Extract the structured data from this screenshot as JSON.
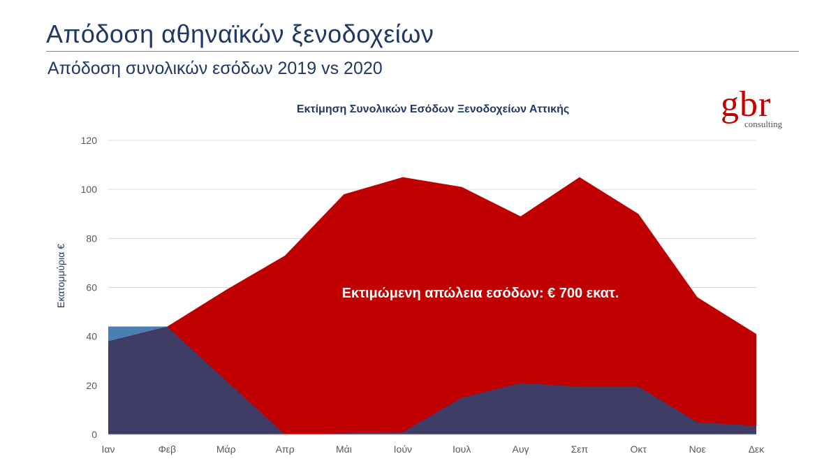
{
  "slide": {
    "title": "Απόδοση αθηναϊκών ξενοδοχείων",
    "subtitle": "Απόδοση συνολικών εσόδων 2019 vs 2020"
  },
  "logo": {
    "main": "gbr",
    "sub": "consulting"
  },
  "chart_data": {
    "type": "area",
    "title": "Εκτίμηση Συνολικών Εσόδων Ξενοδοχείων Αττικής",
    "ylabel": "Εκατομμύρια €",
    "xlabel": "",
    "ylim": [
      0,
      120
    ],
    "yticks": [
      0,
      20,
      40,
      60,
      80,
      100,
      120
    ],
    "grid": true,
    "categories": [
      "Ιαν",
      "Φεβ",
      "Μάρ",
      "Απρ",
      "Μάι",
      "Ιούν",
      "Ιουλ",
      "Αυγ",
      "Σεπ",
      "Οκτ",
      "Νοε",
      "Δεκ"
    ],
    "series": [
      {
        "color": "#c00000",
        "values": [
          44,
          44,
          59,
          73,
          98,
          105,
          101,
          89,
          105,
          90,
          56,
          41
        ]
      },
      {
        "color": "#3f3d66",
        "values": [
          38,
          44,
          22,
          0,
          0.5,
          1,
          15,
          21,
          19.5,
          19.5,
          5,
          3.5
        ]
      }
    ],
    "overlap_color": "#4a7fb5",
    "annotation": "Εκτιμώμενη απώλεια εσόδων: € 700 εκατ."
  }
}
